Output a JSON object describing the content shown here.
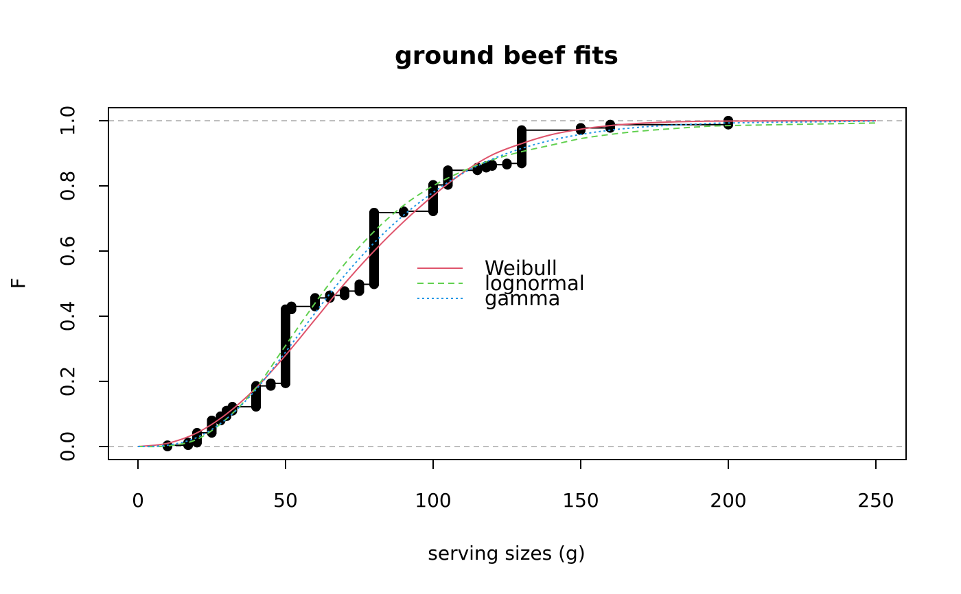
{
  "chart_data": {
    "type": "line",
    "title": "ground beef fits",
    "xlabel": "serving sizes (g)",
    "ylabel": "F",
    "xlim": [
      0,
      250
    ],
    "ylim": [
      0,
      1
    ],
    "x_ticks": [
      0,
      50,
      100,
      150,
      200,
      250
    ],
    "y_ticks": [
      0.0,
      0.2,
      0.4,
      0.6,
      0.8,
      1.0
    ],
    "x_tick_labels": [
      "0",
      "50",
      "100",
      "150",
      "200",
      "250"
    ],
    "y_tick_labels": [
      "0.0",
      "0.2",
      "0.4",
      "0.6",
      "0.8",
      "1.0"
    ],
    "grid": false,
    "reference_lines": [
      0,
      1
    ],
    "legend_position": "center",
    "empirical_cdf": {
      "x": [
        10,
        17,
        20,
        25,
        28,
        30,
        32,
        40,
        45,
        50,
        52,
        60,
        65,
        70,
        75,
        80,
        90,
        100,
        105,
        115,
        118,
        120,
        125,
        130,
        150,
        160,
        200
      ],
      "F_before": [
        0.0,
        0.004,
        0.012,
        0.042,
        0.08,
        0.093,
        0.11,
        0.122,
        0.186,
        0.194,
        0.421,
        0.43,
        0.456,
        0.464,
        0.477,
        0.498,
        0.718,
        0.722,
        0.803,
        0.848,
        0.856,
        0.861,
        0.865,
        0.869,
        0.971,
        0.978,
        0.988
      ],
      "F_after": [
        0.004,
        0.012,
        0.042,
        0.08,
        0.093,
        0.11,
        0.122,
        0.186,
        0.194,
        0.421,
        0.43,
        0.456,
        0.464,
        0.477,
        0.498,
        0.718,
        0.722,
        0.803,
        0.848,
        0.856,
        0.861,
        0.865,
        0.869,
        0.971,
        0.978,
        0.988,
        1.0
      ]
    },
    "series": [
      {
        "name": "Weibull",
        "color": "#DF536B",
        "dash": "solid",
        "x": [
          0,
          10,
          20,
          30,
          40,
          50,
          60,
          70,
          80,
          90,
          100,
          110,
          120,
          130,
          140,
          150,
          160,
          170,
          180,
          190,
          200,
          250
        ],
        "values": [
          0.0,
          0.01,
          0.042,
          0.1,
          0.18,
          0.28,
          0.39,
          0.5,
          0.6,
          0.69,
          0.77,
          0.84,
          0.895,
          0.93,
          0.957,
          0.974,
          0.985,
          0.992,
          0.996,
          0.998,
          0.999,
          1.0
        ]
      },
      {
        "name": "lognormal",
        "color": "#61D04F",
        "dash": "dashed",
        "x": [
          0,
          10,
          20,
          30,
          40,
          50,
          60,
          70,
          80,
          90,
          100,
          110,
          120,
          130,
          140,
          150,
          160,
          170,
          180,
          190,
          200,
          250
        ],
        "values": [
          0.0,
          0.002,
          0.022,
          0.085,
          0.18,
          0.31,
          0.44,
          0.56,
          0.66,
          0.74,
          0.8,
          0.845,
          0.88,
          0.905,
          0.925,
          0.945,
          0.958,
          0.968,
          0.975,
          0.981,
          0.985,
          0.993
        ]
      },
      {
        "name": "gamma",
        "color": "#2297E6",
        "dash": "dotted",
        "x": [
          0,
          10,
          20,
          30,
          40,
          50,
          60,
          70,
          80,
          90,
          100,
          110,
          120,
          130,
          140,
          150,
          160,
          170,
          180,
          190,
          200,
          250
        ],
        "values": [
          0.0,
          0.004,
          0.028,
          0.085,
          0.175,
          0.29,
          0.41,
          0.525,
          0.625,
          0.71,
          0.78,
          0.838,
          0.882,
          0.915,
          0.94,
          0.958,
          0.971,
          0.98,
          0.986,
          0.99,
          0.993,
          0.999
        ]
      }
    ]
  }
}
